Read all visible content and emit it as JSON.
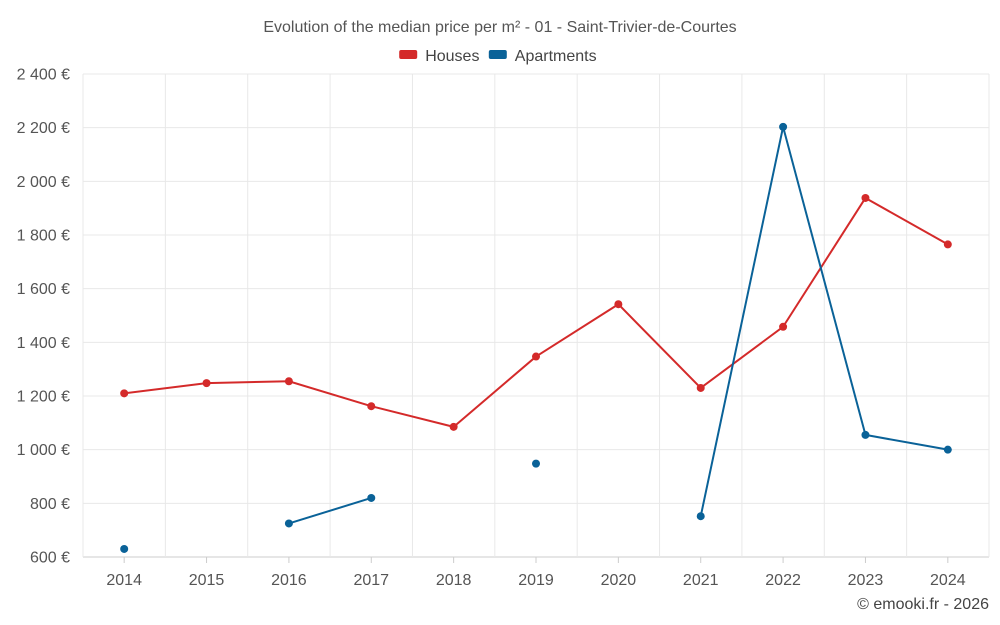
{
  "chart_data": {
    "type": "line",
    "title": "Evolution of the median price per m² - 01 - Saint-Trivier-de-Courtes",
    "categories": [
      "2014",
      "2015",
      "2016",
      "2017",
      "2018",
      "2019",
      "2020",
      "2021",
      "2022",
      "2023",
      "2024"
    ],
    "series": [
      {
        "name": "Houses",
        "color": "#d42a2a",
        "values": [
          1210,
          1248,
          1255,
          1162,
          1085,
          1347,
          1542,
          1230,
          1458,
          1938,
          1765
        ]
      },
      {
        "name": "Apartments",
        "color": "#0a6298",
        "values": [
          630,
          null,
          725,
          820,
          null,
          948,
          null,
          752,
          2203,
          1055,
          1000
        ]
      }
    ],
    "ylim": [
      600,
      2400
    ],
    "yticks": [
      600,
      800,
      1000,
      1200,
      1400,
      1600,
      1800,
      2000,
      2200,
      2400
    ],
    "ytick_labels": [
      "600 €",
      "800 €",
      "1 000 €",
      "1 200 €",
      "1 400 €",
      "1 600 €",
      "1 800 €",
      "2 000 €",
      "2 200 €",
      "2 400 €"
    ],
    "grid": true,
    "legend_position": "top-center",
    "credit": "© emooki.fr - 2026"
  }
}
